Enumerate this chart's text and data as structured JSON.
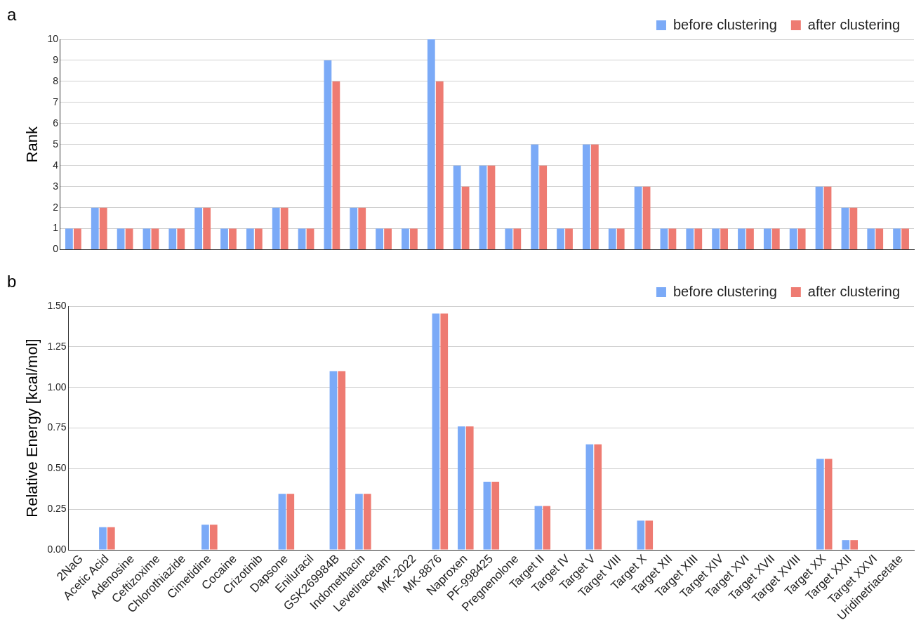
{
  "chart_data": [
    {
      "type": "bar",
      "title": "a",
      "ylabel": "Rank",
      "categories": [
        null,
        null,
        null,
        null,
        null,
        null,
        null,
        null,
        null,
        null,
        null,
        null,
        null,
        null,
        null,
        null,
        null,
        null,
        null,
        null,
        null,
        null,
        null,
        null,
        null,
        null,
        null,
        null,
        null,
        null,
        null,
        null,
        null
      ],
      "series": [
        {
          "name": "before clustering",
          "color": "#7baaf7",
          "values": [
            1,
            2,
            1,
            1,
            1,
            2,
            1,
            1,
            2,
            1,
            9,
            2,
            1,
            1,
            10,
            4,
            4,
            1,
            5,
            1,
            5,
            1,
            3,
            1,
            1,
            1,
            1,
            1,
            1,
            3,
            2,
            1,
            1
          ]
        },
        {
          "name": "after clustering",
          "color": "#ee7b72",
          "values": [
            1,
            2,
            1,
            1,
            1,
            2,
            1,
            1,
            2,
            1,
            8,
            2,
            1,
            1,
            8,
            3,
            4,
            1,
            4,
            1,
            5,
            1,
            3,
            1,
            1,
            1,
            1,
            1,
            1,
            3,
            2,
            1,
            1
          ]
        }
      ],
      "ylim": [
        0,
        10
      ],
      "yticks": [
        0,
        1,
        2,
        3,
        4,
        5,
        6,
        7,
        8,
        9,
        10
      ],
      "grid": "y",
      "legend": "top right"
    },
    {
      "type": "bar",
      "title": "b",
      "ylabel": "Relative Energy [kcal/mol]",
      "categories": [
        "2NaG",
        "Acetic Acid",
        "Adenosine",
        "Ceftizoxime",
        "Chlorothiazide",
        "Cimetidine",
        "Cocaine",
        "Crizotinib",
        "Dapsone",
        "Eniluracil",
        "GSK269984B",
        "Indomethacin",
        "Levetiracetam",
        "MK-2022",
        "MK-8876",
        "Naproxen",
        "PF-998425",
        "Pregnenolone",
        "Target II",
        "Target IV",
        "Target V",
        "Target VIII",
        "Target X",
        "Target XII",
        "Target XIII",
        "Target XIV",
        "Target XVI",
        "Target XVII",
        "Target XVIII",
        "Target XX",
        "Target XXII",
        "Target XXVI",
        "Uridinetriacetate"
      ],
      "series": [
        {
          "name": "before clustering",
          "color": "#7baaf7",
          "values": [
            0,
            0.14,
            0,
            0,
            0,
            0.155,
            0,
            0,
            0.345,
            0,
            1.1,
            0.345,
            0,
            0,
            1.455,
            0.76,
            0.42,
            0,
            0.27,
            0,
            0.65,
            0,
            0.18,
            0,
            0,
            0,
            0,
            0,
            0,
            0.56,
            0.06,
            0,
            0
          ]
        },
        {
          "name": "after clustering",
          "color": "#ee7b72",
          "values": [
            0,
            0.14,
            0,
            0,
            0,
            0.155,
            0,
            0,
            0.345,
            0,
            1.1,
            0.345,
            0,
            0,
            1.455,
            0.76,
            0.42,
            0,
            0.27,
            0,
            0.65,
            0,
            0.18,
            0,
            0,
            0,
            0,
            0,
            0,
            0.56,
            0.06,
            0,
            0
          ]
        }
      ],
      "ylim": [
        0,
        1.5
      ],
      "yticks": [
        {
          "value": 0,
          "label": "0.00"
        },
        {
          "value": 0.25,
          "label": "0.25"
        },
        {
          "value": 0.5,
          "label": "0.50"
        },
        {
          "value": 0.75,
          "label": "0.75"
        },
        {
          "value": 1,
          "label": "1.00"
        },
        {
          "value": 1.25,
          "label": "1.25"
        },
        {
          "value": 1.5,
          "label": "1.50"
        }
      ],
      "grid": "y",
      "legend": "top right"
    }
  ]
}
